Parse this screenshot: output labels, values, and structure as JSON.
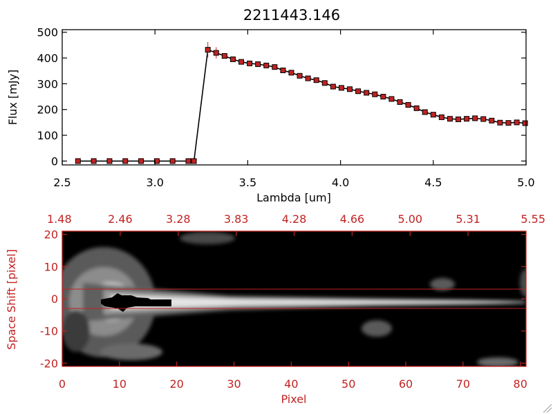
{
  "colors": {
    "axis_top": "#000000",
    "axis_bottom": "#c22222",
    "marker": "#c22222",
    "line": "#000000"
  },
  "chart_data": [
    {
      "type": "line",
      "title": "2211443.146",
      "xlabel": "Lambda [um]",
      "ylabel": "Flux [mJy]",
      "xlim": [
        2.5,
        5.0
      ],
      "ylim": [
        -15,
        510
      ],
      "x_ticks": [
        "2.5",
        "3.0",
        "3.5",
        "4.0",
        "4.5",
        "5.0"
      ],
      "x_tick_values": [
        2.5,
        3.0,
        3.5,
        4.0,
        4.5,
        5.0
      ],
      "y_ticks": [
        "0",
        "100",
        "200",
        "300",
        "400",
        "500"
      ],
      "y_tick_values": [
        0,
        100,
        200,
        300,
        400,
        500
      ],
      "grid": false,
      "series": [
        {
          "x": [
            2.585,
            2.67,
            2.755,
            2.84,
            2.925,
            3.01,
            3.095,
            3.18,
            3.21,
            3.285,
            3.33,
            3.375,
            3.42,
            3.465,
            3.51,
            3.555,
            3.6,
            3.645,
            3.69,
            3.735,
            3.78,
            3.825,
            3.87,
            3.915,
            3.96,
            4.005,
            4.05,
            4.095,
            4.14,
            4.185,
            4.23,
            4.275,
            4.32,
            4.365,
            4.41,
            4.455,
            4.5,
            4.545,
            4.59,
            4.635,
            4.68,
            4.725,
            4.77,
            4.815,
            4.86,
            4.905,
            4.95,
            4.995
          ],
          "y": [
            0,
            0,
            0,
            0,
            0,
            0,
            0,
            0,
            0,
            432,
            420,
            408,
            395,
            385,
            379,
            376,
            371,
            365,
            352,
            343,
            331,
            321,
            314,
            303,
            289,
            284,
            279,
            271,
            265,
            259,
            250,
            241,
            229,
            218,
            205,
            190,
            180,
            170,
            164,
            162,
            164,
            166,
            163,
            157,
            149,
            148,
            150,
            147
          ],
          "err": [
            4,
            4,
            4,
            4,
            4,
            4,
            4,
            4,
            4,
            30,
            22,
            10,
            8,
            7,
            6,
            6,
            6,
            6,
            6,
            6,
            6,
            6,
            6,
            6,
            6,
            6,
            6,
            6,
            6,
            6,
            6,
            6,
            6,
            6,
            6,
            6,
            6,
            6,
            6,
            6,
            6,
            6,
            6,
            6,
            6,
            6,
            6,
            6
          ]
        }
      ]
    },
    {
      "type": "heatmap",
      "xlabel": "Pixel",
      "ylabel": "Space Shift [pixel]",
      "xlim": [
        0,
        81
      ],
      "ylim": [
        -21,
        21
      ],
      "x_ticks": [
        "0",
        "10",
        "20",
        "30",
        "40",
        "50",
        "60",
        "70",
        "80"
      ],
      "x_tick_values": [
        0,
        10,
        20,
        30,
        40,
        50,
        60,
        70,
        80
      ],
      "y_ticks": [
        "-20",
        "-10",
        "0",
        "10",
        "20"
      ],
      "y_tick_values": [
        -20,
        -10,
        0,
        10,
        20
      ],
      "top_ticks": [
        "1.48",
        "2.46",
        "3.28",
        "3.83",
        "4.28",
        "4.66",
        "5.00",
        "5.31",
        "5.55"
      ],
      "extraction_lines": [
        3,
        -3
      ],
      "colormap": "grayscale"
    }
  ]
}
